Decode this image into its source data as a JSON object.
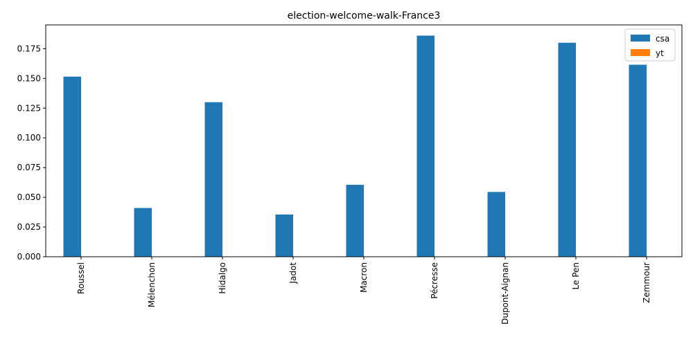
{
  "chart_data": {
    "type": "bar",
    "title": "election-welcome-walk-France3",
    "xlabel": "",
    "ylabel": "",
    "categories": [
      "Roussel",
      "Mélenchon",
      "Hidalgo",
      "Jadot",
      "Macron",
      "Pécresse",
      "Dupont-Aignan",
      "Le Pen",
      "Zemmour"
    ],
    "series": [
      {
        "name": "csa",
        "color": "#1f77b4",
        "values": [
          0.1515,
          0.041,
          0.13,
          0.0355,
          0.0605,
          0.186,
          0.0545,
          0.18,
          0.1615
        ]
      },
      {
        "name": "yt",
        "color": "#ff7f0e",
        "values": [
          0,
          0,
          0,
          0,
          0,
          0,
          0,
          0,
          0
        ]
      }
    ],
    "ylim": [
      0,
      0.195
    ],
    "yticks": [
      0.0,
      0.025,
      0.05,
      0.075,
      0.1,
      0.125,
      0.15,
      0.175
    ],
    "ytick_labels": [
      "0.000",
      "0.025",
      "0.050",
      "0.075",
      "0.100",
      "0.125",
      "0.150",
      "0.175"
    ],
    "grid": false,
    "legend_position": "top-right"
  }
}
